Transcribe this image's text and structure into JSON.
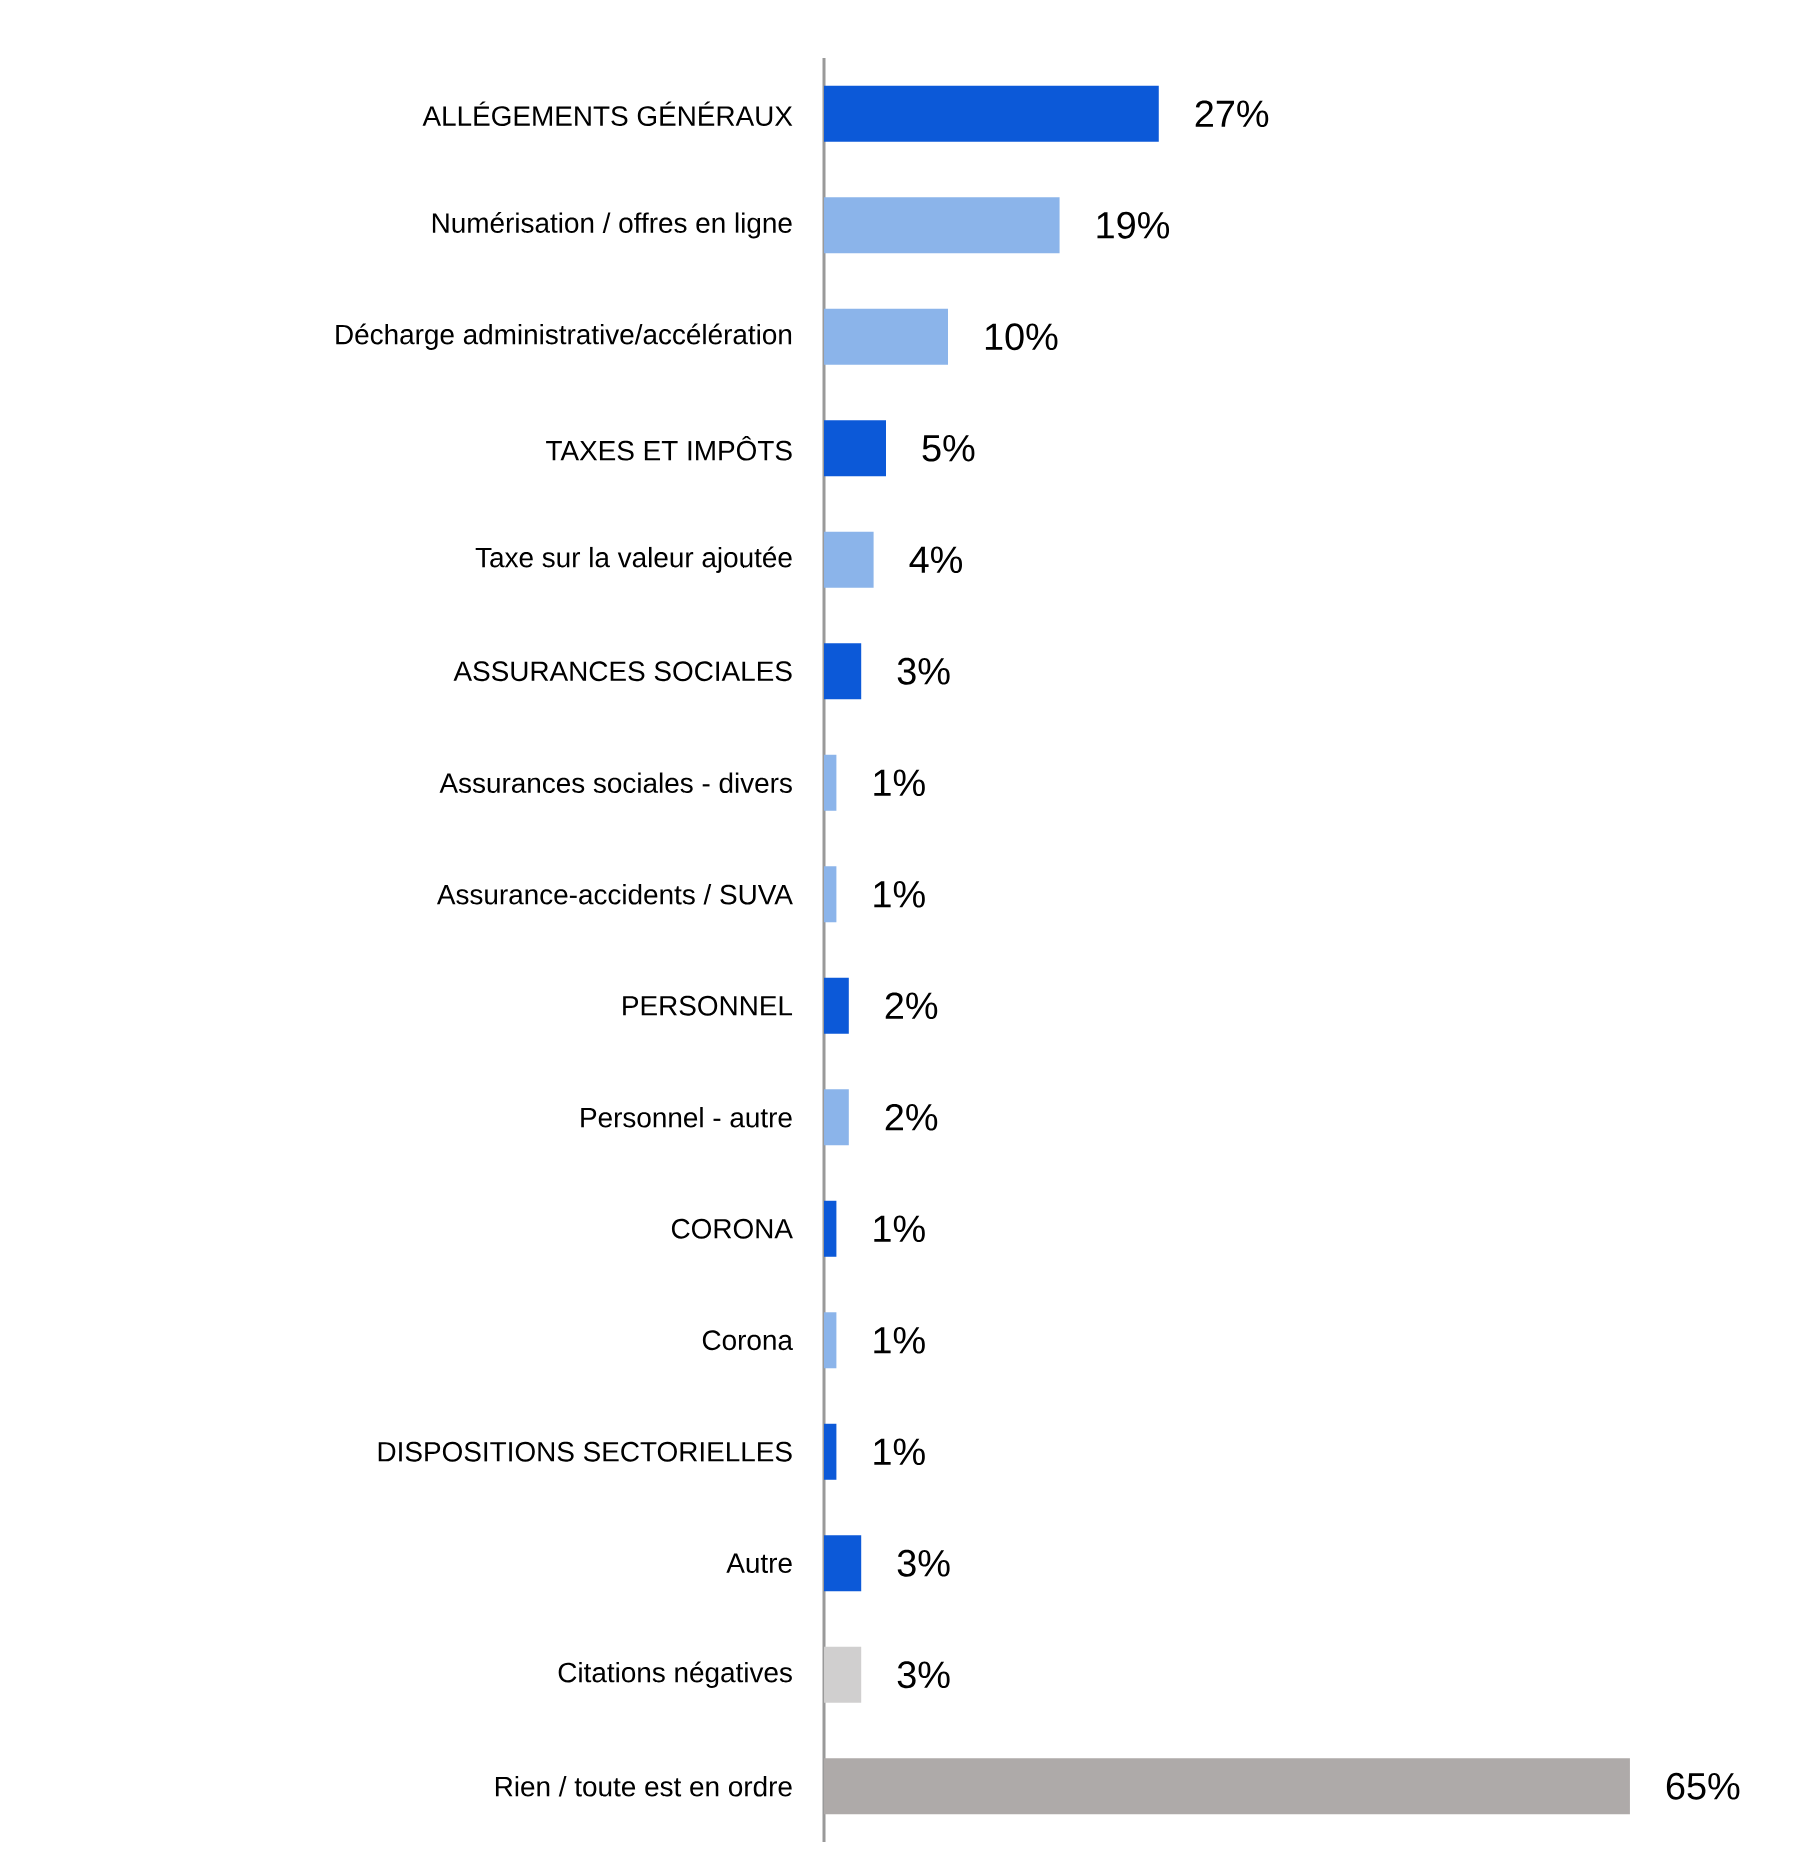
{
  "chart_data": {
    "type": "bar",
    "orientation": "horizontal",
    "categories": [
      "ALLÉGEMENTS GÉNÉRAUX",
      "Numérisation /  offres en ligne",
      "Décharge administrative/accélération",
      "TAXES ET IMPÔTS",
      "Taxe sur la valeur ajoutée",
      "ASSURANCES SOCIALES",
      "Assurances sociales - divers",
      "Assurance-accidents / SUVA",
      "PERSONNEL",
      "Personnel - autre",
      "CORONA",
      "Corona",
      "DISPOSITIONS SECTORIELLES",
      "Autre",
      "Citations négatives",
      "Rien / toute est en ordre"
    ],
    "values": [
      27,
      19,
      10,
      5,
      4,
      3,
      1,
      1,
      2,
      2,
      1,
      1,
      1,
      3,
      3,
      65
    ],
    "value_labels": [
      "27%",
      "19%",
      "10%",
      "5%",
      "4%",
      "3%",
      "1%",
      "1%",
      "2%",
      "2%",
      "1%",
      "1%",
      "1%",
      "3%",
      "3%",
      "65%"
    ],
    "colors": [
      "#0c59d8",
      "#8bb4ea",
      "#8bb4ea",
      "#0c59d8",
      "#8bb4ea",
      "#0c59d8",
      "#8bb4ea",
      "#8bb4ea",
      "#0c59d8",
      "#8bb4ea",
      "#0c59d8",
      "#8bb4ea",
      "#0c59d8",
      "#0c59d8",
      "#d0cfcf",
      "#aeaaa9"
    ]
  }
}
